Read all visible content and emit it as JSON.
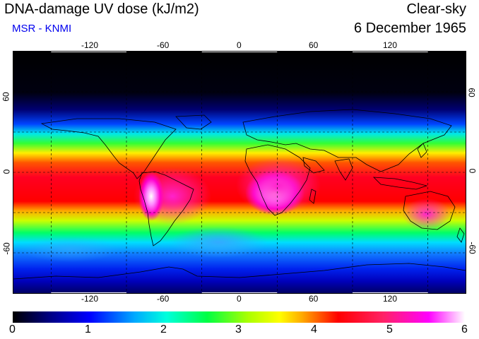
{
  "header": {
    "title": "DNA-damage UV dose (kJ/m2)",
    "subtitle": "MSR - KNMI",
    "condition": "Clear-sky",
    "date": "6 December 1965"
  },
  "map": {
    "projection": "equirectangular",
    "lon_range": [
      -180,
      180
    ],
    "lat_range": [
      -90,
      90
    ],
    "graticule": "dashed",
    "graticule_lon": [
      -180,
      -120,
      -60,
      0,
      60,
      120,
      180
    ],
    "graticule_lat": [
      -60,
      -30,
      0,
      30,
      60
    ],
    "x_ticks": [
      "-120",
      "-60",
      "0",
      "60",
      "120"
    ],
    "y_ticks": [
      "60",
      "0",
      "-60"
    ],
    "y_ticks_right": [
      "60",
      "0",
      "-60"
    ],
    "colors": {
      "coastline": "#000000",
      "grid": "#000000",
      "background": "#000000"
    }
  },
  "colorbar": {
    "ticks": [
      "0",
      "1",
      "2",
      "3",
      "4",
      "5",
      "6"
    ],
    "min": 0,
    "max": 6,
    "unit": "kJ/m2",
    "stops": [
      "#000000",
      "#000080",
      "#0000ff",
      "#00aaff",
      "#00ffdd",
      "#00ff44",
      "#aaff00",
      "#ffff00",
      "#ffaa00",
      "#ff0000",
      "#ff2266",
      "#ff00ff",
      "#ffffff"
    ]
  }
}
